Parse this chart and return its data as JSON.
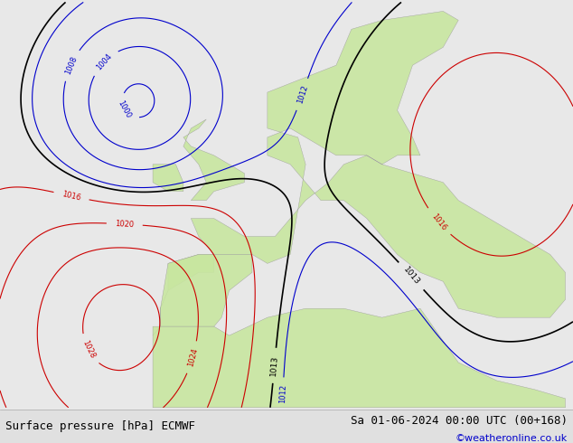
{
  "title_left": "Surface pressure [hPa] ECMWF",
  "title_right": "Sa 01-06-2024 00:00 UTC (00+168)",
  "credit": "©weatheronline.co.uk",
  "bg_color": "#e8e8e8",
  "land_color_green": "#c8e6a0",
  "bottom_bar_color": "#e0e0e0",
  "title_fontsize": 9,
  "credit_color": "#0000cc",
  "lon_min": -30,
  "lon_max": 45,
  "lat_min": 27,
  "lat_max": 72,
  "color_low": "#0000cc",
  "color_high": "#cc0000",
  "color_1013": "#000000"
}
